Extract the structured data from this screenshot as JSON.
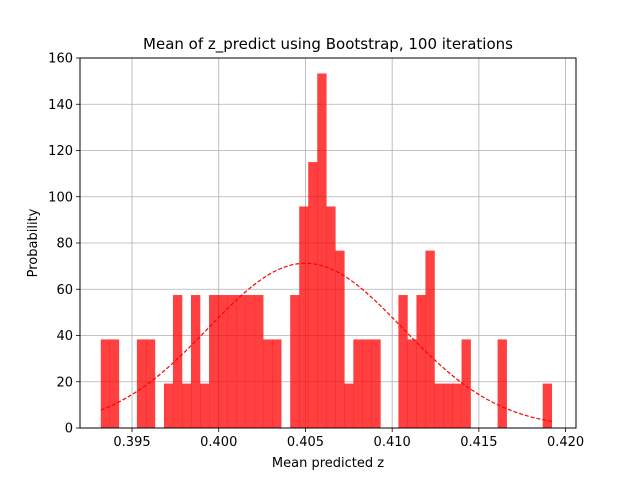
{
  "chart_data": {
    "type": "bar",
    "subtype": "histogram",
    "title": "Mean of z_predict using Bootstrap, 100 iterations",
    "xlabel": "Mean predicted z",
    "ylabel": "Probability",
    "xlim": [
      0.392,
      0.4206
    ],
    "ylim": [
      0,
      160
    ],
    "xticks": [
      "0.395",
      "0.400",
      "0.405",
      "0.410",
      "0.415",
      "0.420"
    ],
    "xtick_values": [
      0.395,
      0.4,
      0.405,
      0.41,
      0.415,
      0.42
    ],
    "yticks": [
      "0",
      "20",
      "40",
      "60",
      "80",
      "100",
      "120",
      "140",
      "160"
    ],
    "grid": true,
    "bar_color": "#ff0000",
    "bar_opacity": 0.75,
    "fit_curve_color": "#ff0000",
    "fit_curve_style": "dashed",
    "bins": [
      {
        "x0": 0.3932,
        "x1": 0.39372,
        "value": 38.3
      },
      {
        "x0": 0.39372,
        "x1": 0.39424,
        "value": 38.3
      },
      {
        "x0": 0.39528,
        "x1": 0.3958,
        "value": 38.3
      },
      {
        "x0": 0.3958,
        "x1": 0.39632,
        "value": 38.3
      },
      {
        "x0": 0.39684,
        "x1": 0.39736,
        "value": 19.2
      },
      {
        "x0": 0.39736,
        "x1": 0.39788,
        "value": 57.5
      },
      {
        "x0": 0.39788,
        "x1": 0.3984,
        "value": 19.2
      },
      {
        "x0": 0.3984,
        "x1": 0.39892,
        "value": 57.5
      },
      {
        "x0": 0.39892,
        "x1": 0.39944,
        "value": 19.2
      },
      {
        "x0": 0.39944,
        "x1": 0.39996,
        "value": 57.5
      },
      {
        "x0": 0.39996,
        "x1": 0.40048,
        "value": 57.5
      },
      {
        "x0": 0.40048,
        "x1": 0.401,
        "value": 57.5
      },
      {
        "x0": 0.401,
        "x1": 0.40152,
        "value": 57.5
      },
      {
        "x0": 0.40152,
        "x1": 0.40204,
        "value": 57.5
      },
      {
        "x0": 0.40204,
        "x1": 0.40256,
        "value": 57.5
      },
      {
        "x0": 0.40256,
        "x1": 0.40308,
        "value": 38.3
      },
      {
        "x0": 0.40308,
        "x1": 0.4036,
        "value": 38.3
      },
      {
        "x0": 0.40412,
        "x1": 0.40464,
        "value": 57.5
      },
      {
        "x0": 0.40464,
        "x1": 0.40516,
        "value": 95.8
      },
      {
        "x0": 0.40516,
        "x1": 0.40568,
        "value": 115.0
      },
      {
        "x0": 0.40568,
        "x1": 0.4062,
        "value": 153.3
      },
      {
        "x0": 0.4062,
        "x1": 0.40672,
        "value": 95.8
      },
      {
        "x0": 0.40672,
        "x1": 0.40724,
        "value": 76.7
      },
      {
        "x0": 0.40724,
        "x1": 0.40776,
        "value": 19.2
      },
      {
        "x0": 0.40776,
        "x1": 0.40828,
        "value": 38.3
      },
      {
        "x0": 0.40828,
        "x1": 0.4088,
        "value": 38.3
      },
      {
        "x0": 0.4088,
        "x1": 0.40932,
        "value": 38.3
      },
      {
        "x0": 0.41036,
        "x1": 0.41088,
        "value": 57.5
      },
      {
        "x0": 0.41088,
        "x1": 0.4114,
        "value": 38.3
      },
      {
        "x0": 0.4114,
        "x1": 0.41192,
        "value": 57.5
      },
      {
        "x0": 0.41192,
        "x1": 0.41244,
        "value": 76.7
      },
      {
        "x0": 0.41244,
        "x1": 0.41296,
        "value": 19.2
      },
      {
        "x0": 0.41296,
        "x1": 0.41348,
        "value": 19.2
      },
      {
        "x0": 0.41348,
        "x1": 0.414,
        "value": 19.2
      },
      {
        "x0": 0.414,
        "x1": 0.41452,
        "value": 38.3
      },
      {
        "x0": 0.41608,
        "x1": 0.4166,
        "value": 38.3
      },
      {
        "x0": 0.41868,
        "x1": 0.4192,
        "value": 19.2
      }
    ],
    "fit_curve": {
      "kind": "normal_pdf",
      "mean": 0.405,
      "std": 0.0056,
      "x_range": [
        0.3932,
        0.4192
      ]
    }
  }
}
